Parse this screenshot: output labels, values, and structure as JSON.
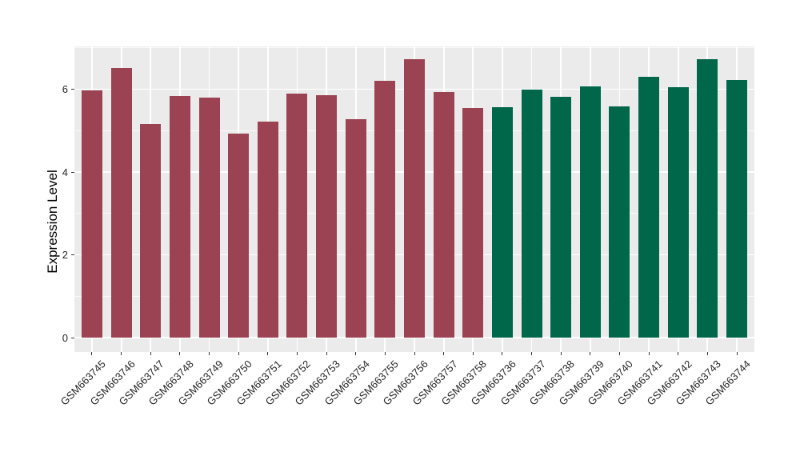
{
  "chart_data": {
    "type": "bar",
    "title": "",
    "xlabel": "",
    "ylabel": "Expression Level",
    "ylim": [
      0,
      7.03
    ],
    "yticks": [
      0,
      2,
      4,
      6
    ],
    "minor_gridlines": [
      1,
      3,
      5,
      7
    ],
    "grid": true,
    "legend_position": "none",
    "panel_background": "#EBEBEB",
    "grid_color": "#FFFFFF",
    "tick_mark_color": "#333333",
    "axis_text_color": "#262626",
    "axis_title_color": "#000000",
    "groups": {
      "group1": {
        "color": "#9B4352"
      },
      "group2": {
        "color": "#00674B"
      }
    },
    "bars": [
      {
        "label": "GSM663745",
        "value": 5.97,
        "group": "group1"
      },
      {
        "label": "GSM663746",
        "value": 6.52,
        "group": "group1"
      },
      {
        "label": "GSM663747",
        "value": 5.16,
        "group": "group1"
      },
      {
        "label": "GSM663748",
        "value": 5.84,
        "group": "group1"
      },
      {
        "label": "GSM663749",
        "value": 5.79,
        "group": "group1"
      },
      {
        "label": "GSM663750",
        "value": 4.92,
        "group": "group1"
      },
      {
        "label": "GSM663751",
        "value": 5.22,
        "group": "group1"
      },
      {
        "label": "GSM663752",
        "value": 5.9,
        "group": "group1"
      },
      {
        "label": "GSM663753",
        "value": 5.86,
        "group": "group1"
      },
      {
        "label": "GSM663754",
        "value": 5.28,
        "group": "group1"
      },
      {
        "label": "GSM663755",
        "value": 6.2,
        "group": "group1"
      },
      {
        "label": "GSM663756",
        "value": 6.72,
        "group": "group1"
      },
      {
        "label": "GSM663757",
        "value": 5.93,
        "group": "group1"
      },
      {
        "label": "GSM663758",
        "value": 5.55,
        "group": "group1"
      },
      {
        "label": "GSM663736",
        "value": 5.57,
        "group": "group2"
      },
      {
        "label": "GSM663737",
        "value": 6.0,
        "group": "group2"
      },
      {
        "label": "GSM663738",
        "value": 5.82,
        "group": "group2"
      },
      {
        "label": "GSM663739",
        "value": 6.07,
        "group": "group2"
      },
      {
        "label": "GSM663740",
        "value": 5.58,
        "group": "group2"
      },
      {
        "label": "GSM663741",
        "value": 6.3,
        "group": "group2"
      },
      {
        "label": "GSM663742",
        "value": 6.05,
        "group": "group2"
      },
      {
        "label": "GSM663743",
        "value": 6.73,
        "group": "group2"
      },
      {
        "label": "GSM663744",
        "value": 6.23,
        "group": "group2"
      }
    ]
  }
}
